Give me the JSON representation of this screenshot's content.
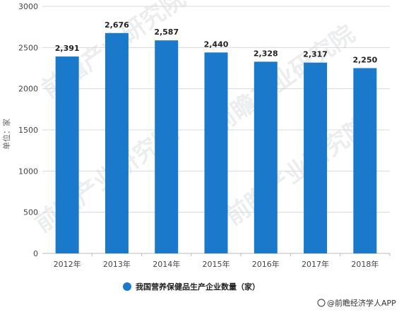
{
  "chart_data": {
    "type": "bar",
    "categories": [
      "2012年",
      "2013年",
      "2014年",
      "2015年",
      "2016年",
      "2017年",
      "2018年"
    ],
    "series": [
      {
        "name": "我国营养保健品生产企业数量（家）",
        "values": [
          2391,
          2676,
          2587,
          2440,
          2328,
          2317,
          2250
        ],
        "color": "#1b79cb"
      }
    ],
    "data_labels": [
      "2,391",
      "2,676",
      "2,587",
      "2,440",
      "2,328",
      "2,317",
      "2,250"
    ],
    "ylabel": "单位：家",
    "ylim": [
      0,
      3000
    ],
    "yticks": [
      "0",
      "500",
      "1000",
      "1500",
      "2000",
      "2500",
      "3000"
    ],
    "ytick_values": [
      0,
      500,
      1000,
      1500,
      2000,
      2500,
      3000
    ],
    "grid": true,
    "legend_position": "bottom"
  },
  "watermark_text": "前瞻产业研究院",
  "footer": {
    "attribution": "@前瞻经济学人APP"
  }
}
